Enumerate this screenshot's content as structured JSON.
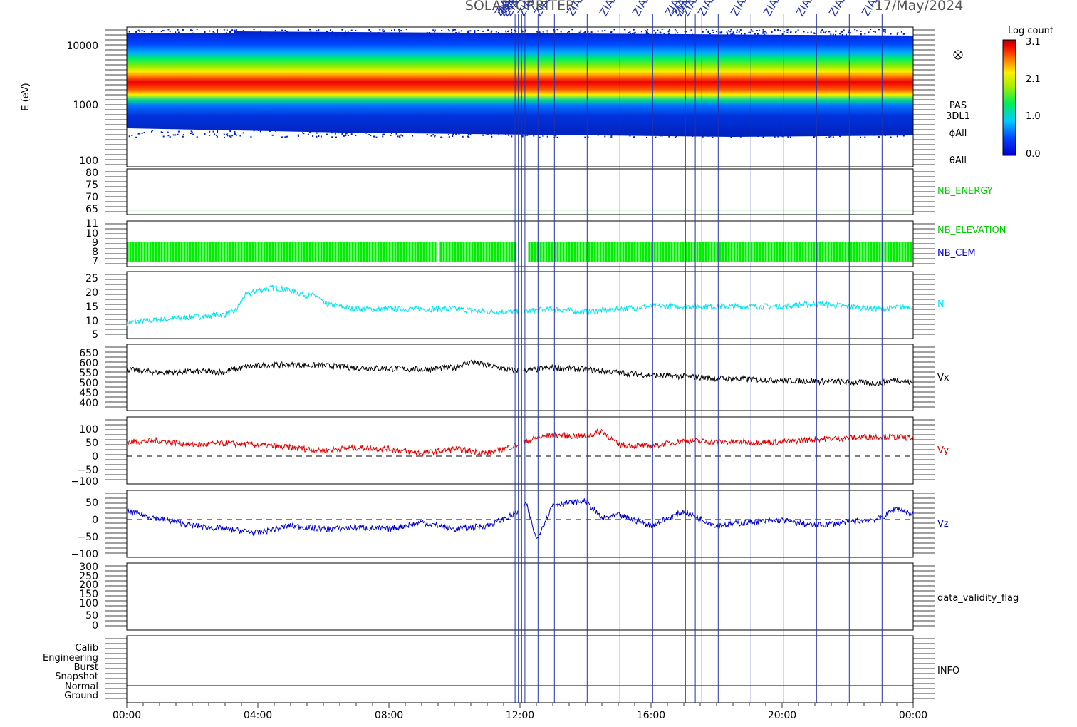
{
  "title": "SOLAR-ORBITER",
  "date": "17/May/2024",
  "colorbar": {
    "title": "Log count",
    "ticks": [
      "3.1",
      "2.1",
      "1.0",
      "0.0"
    ],
    "range": [
      0.0,
      3.1
    ]
  },
  "x_axis": {
    "ticks": [
      "00:00",
      "04:00",
      "08:00",
      "12:00",
      "16:00",
      "20:00",
      "00:00"
    ],
    "range_hours": [
      0,
      24
    ]
  },
  "event_label": "ZIAS",
  "panels": [
    {
      "id": "energy_spectrogram",
      "ylabel": "E (eV)",
      "right_labels": [
        "PAS",
        "3DL1",
        "ϕAll",
        "θAll"
      ],
      "right_label_color": "#000000",
      "yticks": [
        "10000",
        "1000",
        "100"
      ],
      "scale": "log",
      "ylim": [
        100,
        16000
      ]
    },
    {
      "id": "nb_energy",
      "right_labels": [
        "NB_ENERGY"
      ],
      "right_label_color": "#00cc00",
      "yticks": [
        "80",
        "75",
        "70",
        "65"
      ],
      "ylim": [
        62,
        82
      ]
    },
    {
      "id": "nb_elevation",
      "right_labels": [
        "NB_ELEVATION",
        "NB_CEM"
      ],
      "right_label_colors": [
        "#00cc00",
        "#0000cc"
      ],
      "yticks": [
        "11",
        "10",
        "9",
        "8",
        "7"
      ],
      "ylim": [
        6.5,
        11.5
      ]
    },
    {
      "id": "density",
      "right_labels": [
        "N"
      ],
      "right_label_color": "#00e5ee",
      "yticks": [
        "25",
        "20",
        "15",
        "10",
        "5"
      ],
      "ylim": [
        2,
        27
      ]
    },
    {
      "id": "vx",
      "right_labels": [
        "Vx"
      ],
      "right_label_color": "#000000",
      "yticks": [
        "650",
        "600",
        "550",
        "500",
        "450",
        "400"
      ],
      "ylim": [
        350,
        690
      ]
    },
    {
      "id": "vy",
      "right_labels": [
        "Vy"
      ],
      "right_label_color": "#dd0000",
      "yticks": [
        "100",
        "50",
        "0",
        "−50",
        "−100"
      ],
      "ylim": [
        -110,
        130
      ]
    },
    {
      "id": "vz",
      "right_labels": [
        "Vz"
      ],
      "right_label_color": "#0000cc",
      "yticks": [
        "50",
        "0",
        "−50",
        "−100"
      ],
      "ylim": [
        -110,
        80
      ]
    },
    {
      "id": "data_validity_flag",
      "right_labels": [
        "data_validity_flag"
      ],
      "right_label_color": "#000000",
      "yticks": [
        "300",
        "250",
        "200",
        "150",
        "100",
        "50",
        "0"
      ],
      "ylim": [
        -30,
        310
      ]
    },
    {
      "id": "info",
      "right_labels": [
        "INFO"
      ],
      "right_label_color": "#000000",
      "yticks": [
        "Calib",
        "Engineering",
        "Burst",
        "Snapshot",
        "Normal",
        "Ground"
      ]
    }
  ],
  "chart_data": {
    "type": "line",
    "x_unit": "hours",
    "event_times": [
      11.85,
      11.95,
      12.05,
      12.15,
      12.55,
      13.05,
      14.05,
      15.05,
      16.05,
      17.05,
      17.25,
      17.35,
      17.55,
      18.05,
      19.05,
      20.05,
      21.05,
      22.05,
      23.05
    ],
    "series": [
      {
        "name": "NB_ENERGY",
        "color": "#00cc00",
        "x": [
          0,
          24
        ],
        "values": [
          64,
          64
        ]
      },
      {
        "name": "N",
        "color": "#00e5ee",
        "x": [
          0,
          1,
          2,
          3,
          3.3,
          3.6,
          4,
          4.5,
          5,
          5.5,
          5.8,
          6,
          7,
          8,
          9,
          10,
          11,
          12,
          13,
          14,
          15,
          16,
          17,
          18,
          19,
          20,
          21,
          22,
          23,
          24
        ],
        "values": [
          8,
          9,
          10,
          11,
          12,
          18,
          20,
          21,
          20,
          18,
          18,
          15,
          13,
          13,
          13,
          13,
          12,
          12,
          13,
          12,
          13,
          14,
          14,
          14,
          14,
          14,
          15,
          14,
          13,
          14
        ]
      },
      {
        "name": "Vx",
        "color": "#000000",
        "x": [
          0,
          1,
          2,
          3,
          3.5,
          4,
          5,
          6,
          7,
          8,
          9,
          10,
          10.5,
          11,
          11.8,
          12.5,
          13,
          14,
          15,
          16,
          17,
          18,
          19,
          20,
          21,
          22,
          23,
          23.5,
          24
        ],
        "values": [
          560,
          545,
          550,
          548,
          570,
          580,
          585,
          580,
          570,
          565,
          560,
          570,
          600,
          580,
          555,
          560,
          570,
          560,
          545,
          530,
          525,
          515,
          510,
          505,
          500,
          495,
          490,
          510,
          490
        ]
      },
      {
        "name": "Vy",
        "color": "#dd0000",
        "x": [
          0,
          1,
          2,
          3,
          4,
          5,
          6,
          7,
          8,
          9,
          10,
          11,
          11.8,
          12.5,
          13,
          14,
          14.5,
          15,
          16,
          17,
          18,
          19,
          20,
          21,
          22,
          23,
          24
        ],
        "values": [
          40,
          45,
          30,
          35,
          30,
          20,
          10,
          20,
          15,
          0,
          15,
          0,
          25,
          55,
          65,
          60,
          80,
          30,
          25,
          45,
          40,
          40,
          40,
          50,
          55,
          60,
          55
        ]
      },
      {
        "name": "Vz",
        "color": "#0000cc",
        "x": [
          0,
          1,
          2,
          3,
          4,
          5,
          6,
          7,
          8,
          9,
          10,
          11,
          11.8,
          12.2,
          12.5,
          13,
          14,
          14.5,
          15,
          16,
          17,
          18,
          19,
          20,
          21,
          22,
          23,
          23.5,
          24
        ],
        "values": [
          20,
          0,
          -20,
          -30,
          -40,
          -20,
          -30,
          -25,
          -30,
          -10,
          -30,
          -20,
          10,
          40,
          -60,
          40,
          50,
          0,
          10,
          -20,
          20,
          -20,
          -10,
          -5,
          -20,
          -10,
          0,
          30,
          10
        ]
      },
      {
        "name": "NB_ELEVATION",
        "color": "#00cc00",
        "x": [
          0,
          24
        ],
        "values": [
          9,
          7
        ]
      }
    ]
  }
}
